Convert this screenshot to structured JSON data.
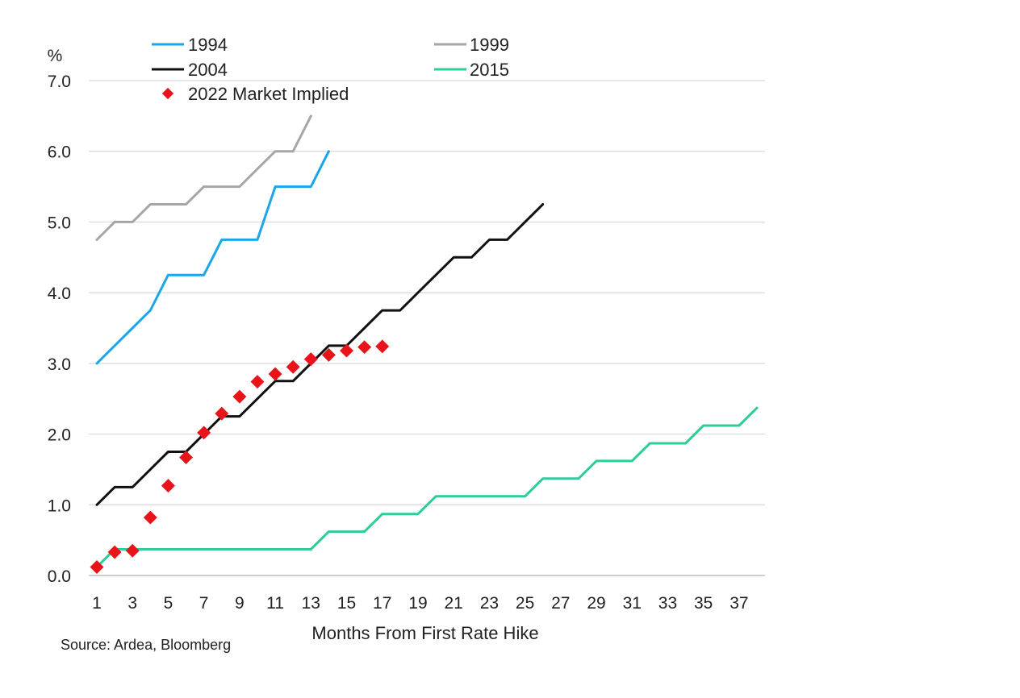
{
  "chart_data": {
    "type": "line",
    "title": "",
    "ylabel": "%",
    "xlabel": "Months From First Rate Hike",
    "source": "Source: Ardea, Bloomberg",
    "ylim": [
      0,
      7
    ],
    "xlim": [
      1,
      38
    ],
    "yticks": [
      "0.0",
      "1.0",
      "2.0",
      "3.0",
      "4.0",
      "5.0",
      "6.0",
      "7.0"
    ],
    "xticks": [
      1,
      3,
      5,
      7,
      9,
      11,
      13,
      15,
      17,
      19,
      21,
      23,
      25,
      27,
      29,
      31,
      33,
      35,
      37
    ],
    "grid": "horizontal",
    "legend_position": "top",
    "series": [
      {
        "name": "1994",
        "kind": "line",
        "color": "#1aa7e8",
        "x": [
          1,
          2,
          3,
          4,
          5,
          6,
          7,
          8,
          9,
          10,
          11,
          12,
          13,
          14
        ],
        "values": [
          3.0,
          3.25,
          3.5,
          3.75,
          4.25,
          4.25,
          4.25,
          4.75,
          4.75,
          4.75,
          5.5,
          5.5,
          5.5,
          6.0
        ]
      },
      {
        "name": "1999",
        "kind": "line",
        "color": "#a6a6a6",
        "x": [
          1,
          2,
          3,
          4,
          5,
          6,
          7,
          8,
          9,
          10,
          11,
          12,
          13
        ],
        "values": [
          4.75,
          5.0,
          5.0,
          5.25,
          5.25,
          5.25,
          5.5,
          5.5,
          5.5,
          5.75,
          6.0,
          6.0,
          6.5
        ]
      },
      {
        "name": "2004",
        "kind": "line",
        "color": "#111111",
        "x": [
          1,
          2,
          3,
          4,
          5,
          6,
          7,
          8,
          9,
          10,
          11,
          12,
          13,
          14,
          15,
          16,
          17,
          18,
          19,
          20,
          21,
          22,
          23,
          24,
          25,
          26
        ],
        "values": [
          1.0,
          1.25,
          1.25,
          1.5,
          1.75,
          1.75,
          2.0,
          2.25,
          2.25,
          2.5,
          2.75,
          2.75,
          3.0,
          3.25,
          3.25,
          3.5,
          3.75,
          3.75,
          4.0,
          4.25,
          4.5,
          4.5,
          4.75,
          4.75,
          5.0,
          5.25
        ]
      },
      {
        "name": "2015",
        "kind": "line",
        "color": "#2ecc9a",
        "x": [
          1,
          2,
          3,
          4,
          5,
          6,
          7,
          8,
          9,
          10,
          11,
          12,
          13,
          14,
          15,
          16,
          17,
          18,
          19,
          20,
          21,
          22,
          23,
          24,
          25,
          26,
          27,
          28,
          29,
          30,
          31,
          32,
          33,
          34,
          35,
          36,
          37,
          38
        ],
        "values": [
          0.12,
          0.37,
          0.37,
          0.37,
          0.37,
          0.37,
          0.37,
          0.37,
          0.37,
          0.37,
          0.37,
          0.37,
          0.37,
          0.62,
          0.62,
          0.62,
          0.87,
          0.87,
          0.87,
          1.12,
          1.12,
          1.12,
          1.12,
          1.12,
          1.12,
          1.37,
          1.37,
          1.37,
          1.62,
          1.62,
          1.62,
          1.87,
          1.87,
          1.87,
          2.12,
          2.12,
          2.12,
          2.37
        ]
      },
      {
        "name": "2022 Market Implied",
        "kind": "scatter",
        "color": "#e8141a",
        "x": [
          1,
          2,
          3,
          4,
          5,
          6,
          7,
          8,
          9,
          10,
          11,
          12,
          13,
          14,
          15,
          16,
          17
        ],
        "values": [
          0.12,
          0.33,
          0.35,
          0.82,
          1.27,
          1.67,
          2.02,
          2.29,
          2.53,
          2.74,
          2.85,
          2.95,
          3.06,
          3.12,
          3.18,
          3.23,
          3.24
        ]
      }
    ]
  }
}
